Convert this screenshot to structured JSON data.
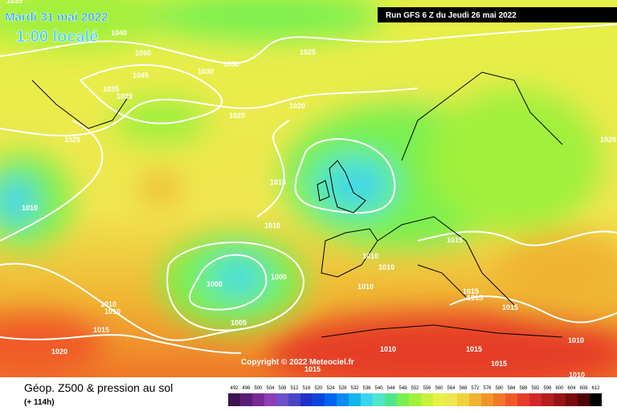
{
  "header": {
    "date": "Mardi 31 mai 2022",
    "time": "1:00 localé",
    "run": "Run GFS 6 Z du Jeudi 26 mai 2022"
  },
  "copyright": "Copyright © 2022 Meteociel.fr",
  "isobar_labels": [
    "1035",
    "1040",
    "1050",
    "1045",
    "1030",
    "1030",
    "1035",
    "1030",
    "1025",
    "1020",
    "1020",
    "1025",
    "1015",
    "1010",
    "1010",
    "1010",
    "1010",
    "1015",
    "1000",
    "1000",
    "1010",
    "1015",
    "1015",
    "1015",
    "1010",
    "1010",
    "1015",
    "1005",
    "1020",
    "1010",
    "1015",
    "1015",
    "1015",
    "1010",
    "1010",
    "1020"
  ],
  "legend": {
    "title": "Géop. Z500 & pression au sol",
    "subtitle": "(+ 114h)",
    "ticks": [
      492,
      496,
      500,
      504,
      508,
      512,
      516,
      520,
      524,
      528,
      532,
      536,
      540,
      544,
      548,
      552,
      556,
      560,
      564,
      568,
      572,
      576,
      580,
      584,
      588,
      592,
      596,
      600,
      604,
      608,
      612
    ],
    "colors": [
      "#3c1450",
      "#5a1e78",
      "#7a2896",
      "#8c3cb4",
      "#6e50c8",
      "#4646c8",
      "#1e32c8",
      "#0a46dc",
      "#0064f0",
      "#0a8cf0",
      "#14b4f0",
      "#3cd2f0",
      "#50e6c8",
      "#50e68c",
      "#78f050",
      "#a0f03c",
      "#c8f03c",
      "#e6f046",
      "#f0e650",
      "#f0d23c",
      "#f0b432",
      "#f09628",
      "#f07828",
      "#f05a28",
      "#e63c28",
      "#d22828",
      "#b41e1e",
      "#961414",
      "#780a0a",
      "#500505",
      "#000000"
    ]
  }
}
